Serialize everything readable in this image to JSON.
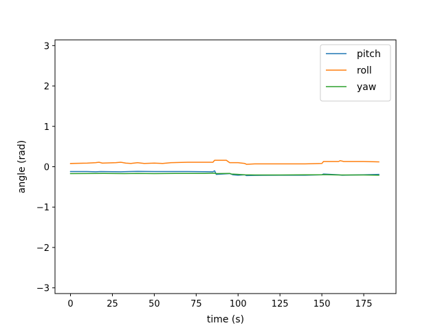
{
  "chart_data": {
    "type": "line",
    "title": "",
    "xlabel": "time (s)",
    "ylabel": "angle (rad)",
    "xlim": [
      -9.25,
      194.25
    ],
    "ylim": [
      -3.1416,
      3.1416
    ],
    "xticks": [
      0,
      25,
      50,
      75,
      100,
      125,
      150,
      175
    ],
    "xtick_labels": [
      "0",
      "25",
      "50",
      "75",
      "100",
      "125",
      "150",
      "175"
    ],
    "yticks": [
      -3,
      -2,
      -1,
      0,
      1,
      2,
      3
    ],
    "ytick_labels": [
      "−3",
      "−2",
      "−1",
      "0",
      "1",
      "2",
      "3"
    ],
    "grid": false,
    "legend_position": "upper right",
    "series": [
      {
        "name": "pitch",
        "color": "#1f77b4",
        "points": [
          [
            0,
            -0.12
          ],
          [
            10,
            -0.12
          ],
          [
            15,
            -0.125
          ],
          [
            18,
            -0.12
          ],
          [
            30,
            -0.125
          ],
          [
            35,
            -0.12
          ],
          [
            40,
            -0.115
          ],
          [
            50,
            -0.12
          ],
          [
            60,
            -0.12
          ],
          [
            70,
            -0.12
          ],
          [
            85,
            -0.125
          ],
          [
            86,
            -0.1
          ],
          [
            87,
            -0.19
          ],
          [
            95,
            -0.17
          ],
          [
            97,
            -0.2
          ],
          [
            100,
            -0.21
          ],
          [
            104,
            -0.2
          ],
          [
            105,
            -0.22
          ],
          [
            110,
            -0.215
          ],
          [
            125,
            -0.21
          ],
          [
            140,
            -0.21
          ],
          [
            150,
            -0.2
          ],
          [
            151,
            -0.18
          ],
          [
            155,
            -0.19
          ],
          [
            160,
            -0.2
          ],
          [
            162,
            -0.21
          ],
          [
            175,
            -0.2
          ],
          [
            184,
            -0.19
          ]
        ]
      },
      {
        "name": "roll",
        "color": "#ff7f0e",
        "points": [
          [
            0,
            0.08
          ],
          [
            10,
            0.09
          ],
          [
            15,
            0.1
          ],
          [
            17,
            0.11
          ],
          [
            19,
            0.09
          ],
          [
            27,
            0.1
          ],
          [
            30,
            0.11
          ],
          [
            33,
            0.09
          ],
          [
            36,
            0.08
          ],
          [
            40,
            0.1
          ],
          [
            44,
            0.08
          ],
          [
            50,
            0.09
          ],
          [
            55,
            0.08
          ],
          [
            60,
            0.1
          ],
          [
            70,
            0.11
          ],
          [
            85,
            0.11
          ],
          [
            86,
            0.16
          ],
          [
            93,
            0.16
          ],
          [
            95,
            0.1
          ],
          [
            100,
            0.1
          ],
          [
            104,
            0.08
          ],
          [
            105,
            0.06
          ],
          [
            110,
            0.07
          ],
          [
            120,
            0.07
          ],
          [
            130,
            0.07
          ],
          [
            140,
            0.07
          ],
          [
            150,
            0.08
          ],
          [
            151,
            0.13
          ],
          [
            160,
            0.13
          ],
          [
            161,
            0.15
          ],
          [
            163,
            0.13
          ],
          [
            175,
            0.13
          ],
          [
            184,
            0.12
          ]
        ]
      },
      {
        "name": "yaw",
        "color": "#2ca02c",
        "points": [
          [
            0,
            -0.17
          ],
          [
            20,
            -0.165
          ],
          [
            32,
            -0.17
          ],
          [
            40,
            -0.165
          ],
          [
            50,
            -0.17
          ],
          [
            65,
            -0.165
          ],
          [
            80,
            -0.165
          ],
          [
            86,
            -0.16
          ],
          [
            87,
            -0.17
          ],
          [
            95,
            -0.165
          ],
          [
            96,
            -0.18
          ],
          [
            100,
            -0.19
          ],
          [
            104,
            -0.2
          ],
          [
            110,
            -0.205
          ],
          [
            125,
            -0.205
          ],
          [
            140,
            -0.2
          ],
          [
            150,
            -0.2
          ],
          [
            151,
            -0.195
          ],
          [
            160,
            -0.205
          ],
          [
            175,
            -0.205
          ],
          [
            184,
            -0.21
          ]
        ]
      }
    ]
  }
}
